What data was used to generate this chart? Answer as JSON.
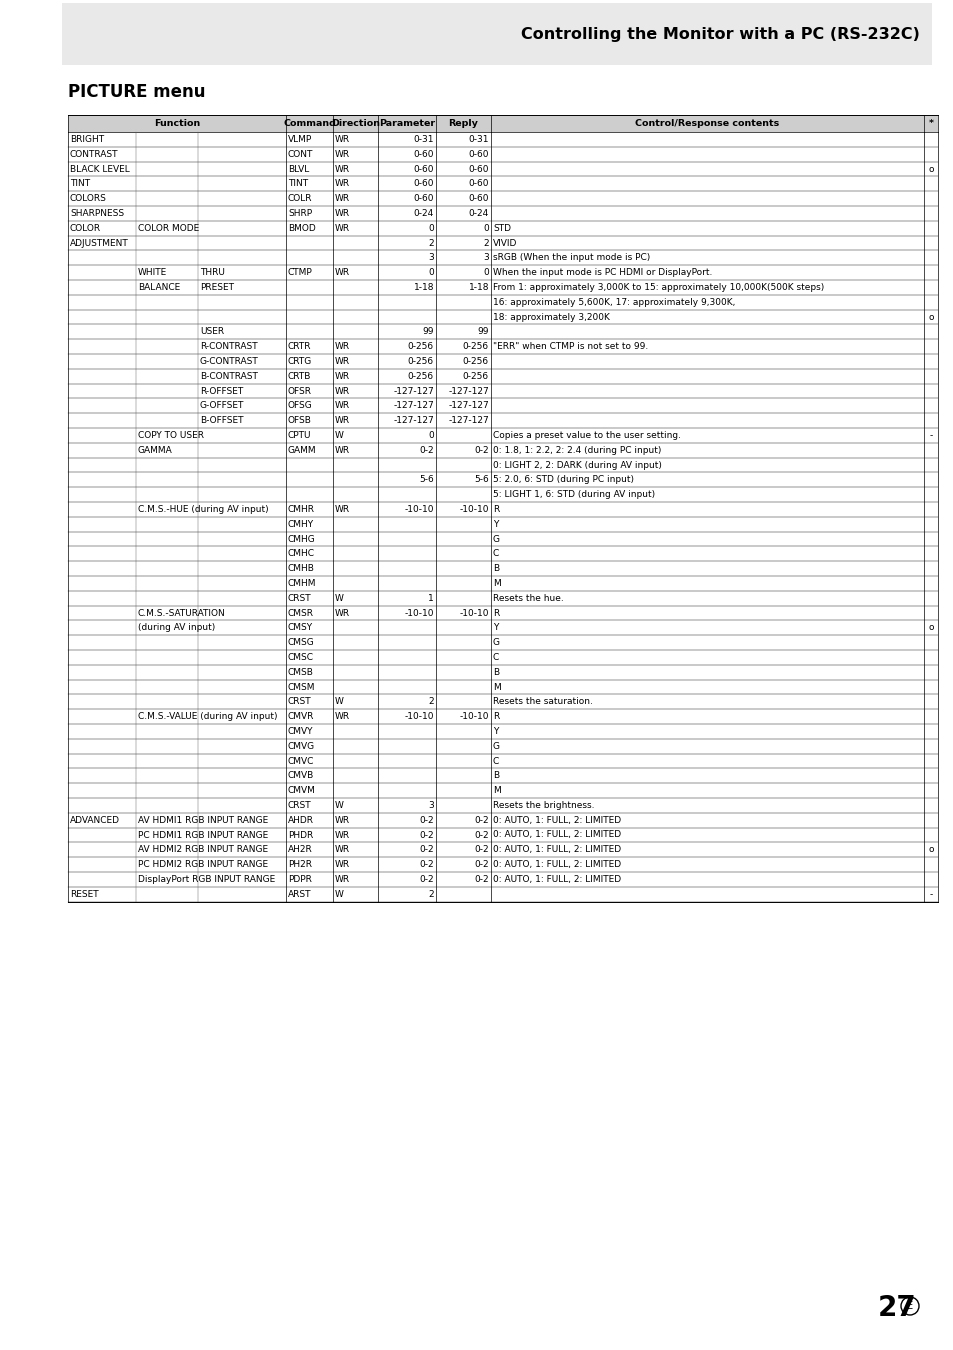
{
  "title": "Controlling the Monitor with a PC (RS-232C)",
  "section_title": "PICTURE menu",
  "page_number": "27",
  "rows": [
    {
      "func1": "BRIGHT",
      "func2": "",
      "func3": "",
      "cmd": "VLMP",
      "dir": "WR",
      "param": "0-31",
      "reply": "0-31",
      "ctrl": "",
      "star": ""
    },
    {
      "func1": "CONTRAST",
      "func2": "",
      "func3": "",
      "cmd": "CONT",
      "dir": "WR",
      "param": "0-60",
      "reply": "0-60",
      "ctrl": "",
      "star": ""
    },
    {
      "func1": "BLACK LEVEL",
      "func2": "",
      "func3": "",
      "cmd": "BLVL",
      "dir": "WR",
      "param": "0-60",
      "reply": "0-60",
      "ctrl": "",
      "star": "o"
    },
    {
      "func1": "TINT",
      "func2": "",
      "func3": "",
      "cmd": "TINT",
      "dir": "WR",
      "param": "0-60",
      "reply": "0-60",
      "ctrl": "",
      "star": ""
    },
    {
      "func1": "COLORS",
      "func2": "",
      "func3": "",
      "cmd": "COLR",
      "dir": "WR",
      "param": "0-60",
      "reply": "0-60",
      "ctrl": "",
      "star": ""
    },
    {
      "func1": "SHARPNESS",
      "func2": "",
      "func3": "",
      "cmd": "SHRP",
      "dir": "WR",
      "param": "0-24",
      "reply": "0-24",
      "ctrl": "",
      "star": ""
    },
    {
      "func1": "COLOR",
      "func2": "COLOR MODE",
      "func3": "",
      "cmd": "BMOD",
      "dir": "WR",
      "param": "0",
      "reply": "0",
      "ctrl": "STD",
      "star": ""
    },
    {
      "func1": "ADJUSTMENT",
      "func2": "",
      "func3": "",
      "cmd": "",
      "dir": "",
      "param": "2",
      "reply": "2",
      "ctrl": "VIVID",
      "star": ""
    },
    {
      "func1": "",
      "func2": "",
      "func3": "",
      "cmd": "",
      "dir": "",
      "param": "3",
      "reply": "3",
      "ctrl": "sRGB (When the input mode is PC)",
      "star": ""
    },
    {
      "func1": "",
      "func2": "WHITE",
      "func3": "THRU",
      "cmd": "CTMP",
      "dir": "WR",
      "param": "0",
      "reply": "0",
      "ctrl": "When the input mode is PC HDMI or DisplayPort.",
      "star": ""
    },
    {
      "func1": "",
      "func2": "BALANCE",
      "func3": "PRESET",
      "cmd": "",
      "dir": "",
      "param": "1-18",
      "reply": "1-18",
      "ctrl": "From 1: approximately 3,000K to 15: approximately 10,000K(500K steps)",
      "star": ""
    },
    {
      "func1": "",
      "func2": "",
      "func3": "",
      "cmd": "",
      "dir": "",
      "param": "",
      "reply": "",
      "ctrl": "16: approximately 5,600K, 17: approximately 9,300K,",
      "star": ""
    },
    {
      "func1": "",
      "func2": "",
      "func3": "",
      "cmd": "",
      "dir": "",
      "param": "",
      "reply": "",
      "ctrl": "18: approximately 3,200K",
      "star": "o"
    },
    {
      "func1": "",
      "func2": "",
      "func3": "USER",
      "cmd": "",
      "dir": "",
      "param": "99",
      "reply": "99",
      "ctrl": "",
      "star": ""
    },
    {
      "func1": "",
      "func2": "",
      "func3": "R-CONTRAST",
      "cmd": "CRTR",
      "dir": "WR",
      "param": "0-256",
      "reply": "0-256",
      "ctrl": "\"ERR\" when CTMP is not set to 99.",
      "star": ""
    },
    {
      "func1": "",
      "func2": "",
      "func3": "G-CONTRAST",
      "cmd": "CRTG",
      "dir": "WR",
      "param": "0-256",
      "reply": "0-256",
      "ctrl": "",
      "star": ""
    },
    {
      "func1": "",
      "func2": "",
      "func3": "B-CONTRAST",
      "cmd": "CRTB",
      "dir": "WR",
      "param": "0-256",
      "reply": "0-256",
      "ctrl": "",
      "star": ""
    },
    {
      "func1": "",
      "func2": "",
      "func3": "R-OFFSET",
      "cmd": "OFSR",
      "dir": "WR",
      "param": "-127-127",
      "reply": "-127-127",
      "ctrl": "",
      "star": ""
    },
    {
      "func1": "",
      "func2": "",
      "func3": "G-OFFSET",
      "cmd": "OFSG",
      "dir": "WR",
      "param": "-127-127",
      "reply": "-127-127",
      "ctrl": "",
      "star": ""
    },
    {
      "func1": "",
      "func2": "",
      "func3": "B-OFFSET",
      "cmd": "OFSB",
      "dir": "WR",
      "param": "-127-127",
      "reply": "-127-127",
      "ctrl": "",
      "star": ""
    },
    {
      "func1": "",
      "func2": "COPY TO USER",
      "func3": "",
      "cmd": "CPTU",
      "dir": "W",
      "param": "0",
      "reply": "",
      "ctrl": "Copies a preset value to the user setting.",
      "star": "-"
    },
    {
      "func1": "",
      "func2": "GAMMA",
      "func3": "",
      "cmd": "GAMM",
      "dir": "WR",
      "param": "0-2",
      "reply": "0-2",
      "ctrl": "0: 1.8, 1: 2.2, 2: 2.4 (during PC input)",
      "star": ""
    },
    {
      "func1": "",
      "func2": "",
      "func3": "",
      "cmd": "",
      "dir": "",
      "param": "",
      "reply": "",
      "ctrl": "0: LIGHT 2, 2: DARK (during AV input)",
      "star": ""
    },
    {
      "func1": "",
      "func2": "",
      "func3": "",
      "cmd": "",
      "dir": "",
      "param": "5-6",
      "reply": "5-6",
      "ctrl": "5: 2.0, 6: STD (during PC input)",
      "star": ""
    },
    {
      "func1": "",
      "func2": "",
      "func3": "",
      "cmd": "",
      "dir": "",
      "param": "",
      "reply": "",
      "ctrl": "5: LIGHT 1, 6: STD (during AV input)",
      "star": ""
    },
    {
      "func1": "",
      "func2": "C.M.S.-HUE (during AV input)",
      "func3": "",
      "cmd": "CMHR",
      "dir": "WR",
      "param": "-10-10",
      "reply": "-10-10",
      "ctrl": "R",
      "star": ""
    },
    {
      "func1": "",
      "func2": "",
      "func3": "",
      "cmd": "CMHY",
      "dir": "",
      "param": "",
      "reply": "",
      "ctrl": "Y",
      "star": ""
    },
    {
      "func1": "",
      "func2": "",
      "func3": "",
      "cmd": "CMHG",
      "dir": "",
      "param": "",
      "reply": "",
      "ctrl": "G",
      "star": ""
    },
    {
      "func1": "",
      "func2": "",
      "func3": "",
      "cmd": "CMHC",
      "dir": "",
      "param": "",
      "reply": "",
      "ctrl": "C",
      "star": ""
    },
    {
      "func1": "",
      "func2": "",
      "func3": "",
      "cmd": "CMHB",
      "dir": "",
      "param": "",
      "reply": "",
      "ctrl": "B",
      "star": ""
    },
    {
      "func1": "",
      "func2": "",
      "func3": "",
      "cmd": "CMHM",
      "dir": "",
      "param": "",
      "reply": "",
      "ctrl": "M",
      "star": ""
    },
    {
      "func1": "",
      "func2": "",
      "func3": "",
      "cmd": "CRST",
      "dir": "W",
      "param": "1",
      "reply": "",
      "ctrl": "Resets the hue.",
      "star": ""
    },
    {
      "func1": "",
      "func2": "C.M.S.-SATURATION",
      "func3": "",
      "cmd": "CMSR",
      "dir": "WR",
      "param": "-10-10",
      "reply": "-10-10",
      "ctrl": "R",
      "star": ""
    },
    {
      "func1": "",
      "func2": "(during AV input)",
      "func3": "",
      "cmd": "CMSY",
      "dir": "",
      "param": "",
      "reply": "",
      "ctrl": "Y",
      "star": "o"
    },
    {
      "func1": "",
      "func2": "",
      "func3": "",
      "cmd": "CMSG",
      "dir": "",
      "param": "",
      "reply": "",
      "ctrl": "G",
      "star": ""
    },
    {
      "func1": "",
      "func2": "",
      "func3": "",
      "cmd": "CMSC",
      "dir": "",
      "param": "",
      "reply": "",
      "ctrl": "C",
      "star": ""
    },
    {
      "func1": "",
      "func2": "",
      "func3": "",
      "cmd": "CMSB",
      "dir": "",
      "param": "",
      "reply": "",
      "ctrl": "B",
      "star": ""
    },
    {
      "func1": "",
      "func2": "",
      "func3": "",
      "cmd": "CMSM",
      "dir": "",
      "param": "",
      "reply": "",
      "ctrl": "M",
      "star": ""
    },
    {
      "func1": "",
      "func2": "",
      "func3": "",
      "cmd": "CRST",
      "dir": "W",
      "param": "2",
      "reply": "",
      "ctrl": "Resets the saturation.",
      "star": ""
    },
    {
      "func1": "",
      "func2": "C.M.S.-VALUE (during AV input)",
      "func3": "",
      "cmd": "CMVR",
      "dir": "WR",
      "param": "-10-10",
      "reply": "-10-10",
      "ctrl": "R",
      "star": ""
    },
    {
      "func1": "",
      "func2": "",
      "func3": "",
      "cmd": "CMVY",
      "dir": "",
      "param": "",
      "reply": "",
      "ctrl": "Y",
      "star": ""
    },
    {
      "func1": "",
      "func2": "",
      "func3": "",
      "cmd": "CMVG",
      "dir": "",
      "param": "",
      "reply": "",
      "ctrl": "G",
      "star": ""
    },
    {
      "func1": "",
      "func2": "",
      "func3": "",
      "cmd": "CMVC",
      "dir": "",
      "param": "",
      "reply": "",
      "ctrl": "C",
      "star": ""
    },
    {
      "func1": "",
      "func2": "",
      "func3": "",
      "cmd": "CMVB",
      "dir": "",
      "param": "",
      "reply": "",
      "ctrl": "B",
      "star": ""
    },
    {
      "func1": "",
      "func2": "",
      "func3": "",
      "cmd": "CMVM",
      "dir": "",
      "param": "",
      "reply": "",
      "ctrl": "M",
      "star": ""
    },
    {
      "func1": "",
      "func2": "",
      "func3": "",
      "cmd": "CRST",
      "dir": "W",
      "param": "3",
      "reply": "",
      "ctrl": "Resets the brightness.",
      "star": ""
    },
    {
      "func1": "ADVANCED",
      "func2": "AV HDMI1 RGB INPUT RANGE",
      "func3": "",
      "cmd": "AHDR",
      "dir": "WR",
      "param": "0-2",
      "reply": "0-2",
      "ctrl": "0: AUTO, 1: FULL, 2: LIMITED",
      "star": ""
    },
    {
      "func1": "",
      "func2": "PC HDMI1 RGB INPUT RANGE",
      "func3": "",
      "cmd": "PHDR",
      "dir": "WR",
      "param": "0-2",
      "reply": "0-2",
      "ctrl": "0: AUTO, 1: FULL, 2: LIMITED",
      "star": ""
    },
    {
      "func1": "",
      "func2": "AV HDMI2 RGB INPUT RANGE",
      "func3": "",
      "cmd": "AH2R",
      "dir": "WR",
      "param": "0-2",
      "reply": "0-2",
      "ctrl": "0: AUTO, 1: FULL, 2: LIMITED",
      "star": "o"
    },
    {
      "func1": "",
      "func2": "PC HDMI2 RGB INPUT RANGE",
      "func3": "",
      "cmd": "PH2R",
      "dir": "WR",
      "param": "0-2",
      "reply": "0-2",
      "ctrl": "0: AUTO, 1: FULL, 2: LIMITED",
      "star": ""
    },
    {
      "func1": "",
      "func2": "DisplayPort RGB INPUT RANGE",
      "func3": "",
      "cmd": "PDPR",
      "dir": "WR",
      "param": "0-2",
      "reply": "0-2",
      "ctrl": "0: AUTO, 1: FULL, 2: LIMITED",
      "star": ""
    },
    {
      "func1": "RESET",
      "func2": "",
      "func3": "",
      "cmd": "ARST",
      "dir": "W",
      "param": "2",
      "reply": "",
      "ctrl": "",
      "star": "-"
    }
  ]
}
